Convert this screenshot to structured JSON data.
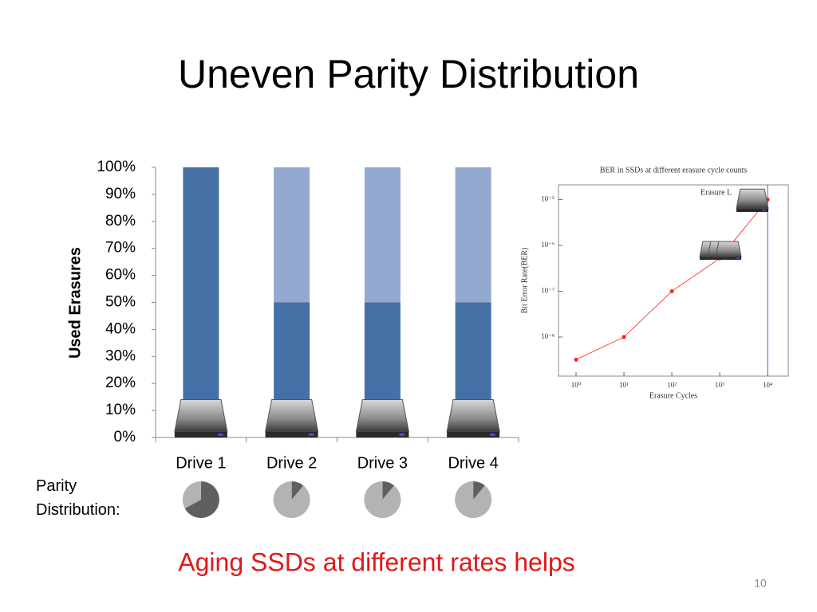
{
  "title": "Uneven Parity Distribution",
  "parity_label": "Parity Distribution:",
  "caption": "Aging SSDs at different rates helps",
  "page_number": "10",
  "chart_data": [
    {
      "type": "bar",
      "stacked": true,
      "y_label": "Used Erasures",
      "categories": [
        "Drive 1",
        "Drive 2",
        "Drive 3",
        "Drive 4"
      ],
      "series": [
        {
          "color": "#4470a6",
          "values": [
            100,
            50,
            50,
            50
          ]
        },
        {
          "color": "#93a9cf",
          "values": [
            0,
            50,
            50,
            50
          ]
        }
      ],
      "ylim": [
        0,
        100
      ],
      "yticks": [
        {
          "value": 0,
          "label": "0%"
        },
        {
          "value": 10,
          "label": "10%"
        },
        {
          "value": 20,
          "label": "20%"
        },
        {
          "value": 30,
          "label": "30%"
        },
        {
          "value": 40,
          "label": "40%"
        },
        {
          "value": 50,
          "label": "50%"
        },
        {
          "value": 60,
          "label": "60%"
        },
        {
          "value": 70,
          "label": "70%"
        },
        {
          "value": 80,
          "label": "80%"
        },
        {
          "value": 90,
          "label": "90%"
        },
        {
          "value": 100,
          "label": "100%"
        }
      ]
    },
    {
      "type": "pies",
      "colors": [
        "#5f5f5f",
        "#b3b3b3"
      ],
      "pies": [
        {
          "values": [
            67,
            33
          ]
        },
        {
          "values": [
            11,
            89
          ]
        },
        {
          "values": [
            11,
            89
          ]
        },
        {
          "values": [
            11,
            89
          ]
        }
      ]
    },
    {
      "type": "line",
      "title": "BER in SSDs at different erasure cycle counts",
      "x_label": "Erasure Cycles",
      "y_label": "Bit Error Rate(BER)",
      "annotation": "Erasure L",
      "xscale": "log",
      "yscale": "log",
      "x": [
        1,
        10,
        100,
        1000,
        10000
      ],
      "series": [
        {
          "color": "#ff2020",
          "values": [
            3.2e-09,
            1e-08,
            1e-07,
            5.2e-07,
            1e-05
          ]
        }
      ],
      "vline": 10000,
      "vline_color": "#5050ff",
      "xlim": [
        0.43,
        27000
      ],
      "ylim": [
        1.4e-09,
        2.1e-05
      ],
      "xticks": [
        {
          "value": 1,
          "label": "10⁰"
        },
        {
          "value": 10,
          "label": "10¹"
        },
        {
          "value": 100,
          "label": "10²"
        },
        {
          "value": 1000,
          "label": "10³"
        },
        {
          "value": 10000,
          "label": "10⁴"
        }
      ],
      "yticks": [
        {
          "value": 1e-08,
          "label": "10⁻⁸"
        },
        {
          "value": 1e-07,
          "label": "10⁻⁷"
        },
        {
          "value": 1e-06,
          "label": "10⁻⁶"
        },
        {
          "value": 1e-05,
          "label": "10⁻⁵"
        }
      ]
    }
  ]
}
